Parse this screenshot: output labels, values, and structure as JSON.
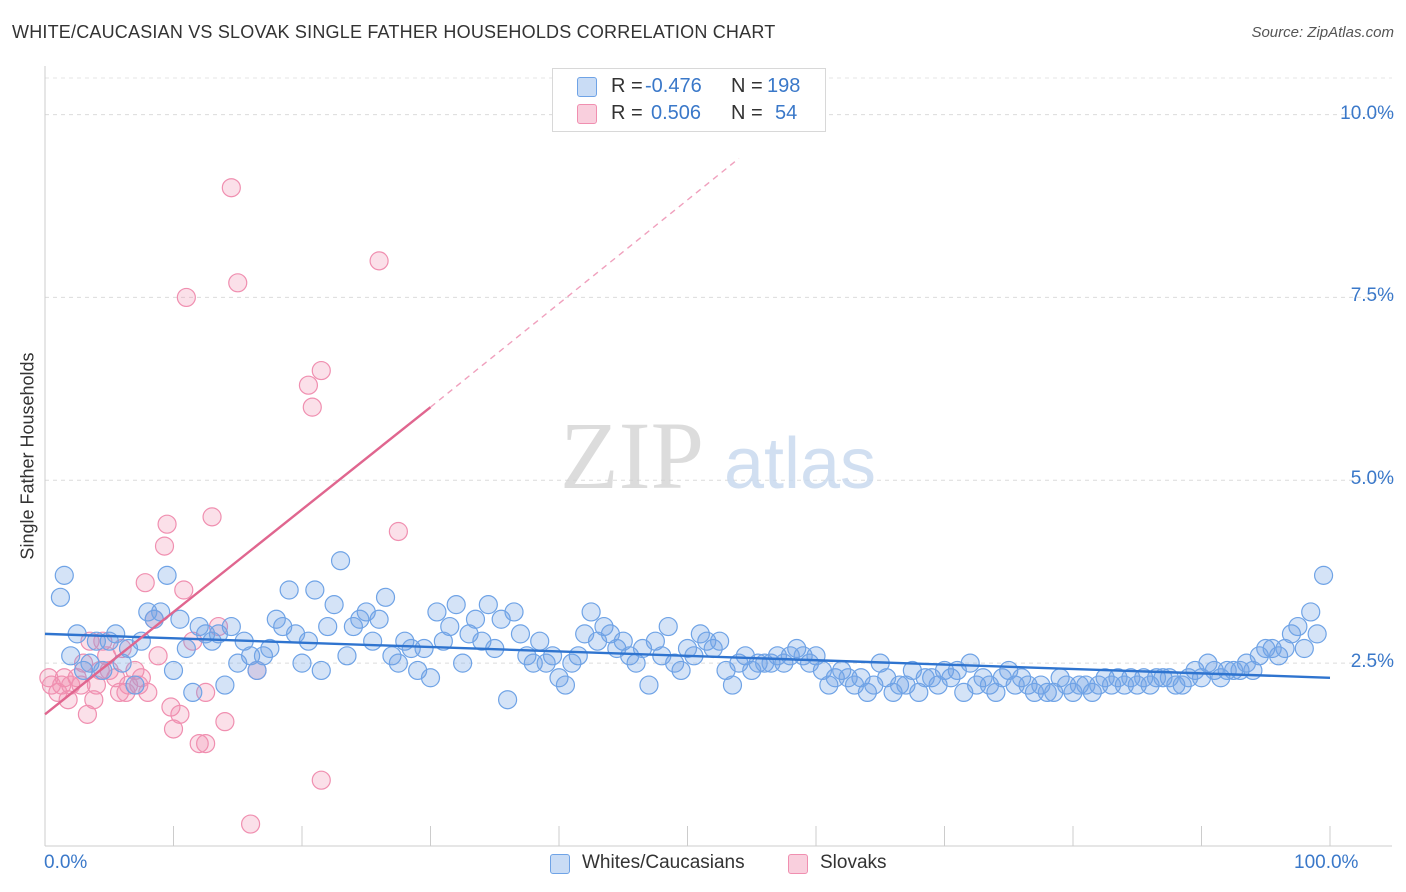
{
  "title": "WHITE/CAUCASIAN VS SLOVAK SINGLE FATHER HOUSEHOLDS CORRELATION CHART",
  "source": "Source: ZipAtlas.com",
  "watermark": {
    "zip": "ZIP",
    "atlas": "atlas"
  },
  "legend_top": [
    {
      "r_label": "R =",
      "r_value": "-0.476",
      "n_label": "N =",
      "n_value": "198",
      "color": "#6fa3e6"
    },
    {
      "r_label": "R =",
      "r_value": "0.506",
      "n_label": "N =",
      "n_value": "54",
      "color": "#f08fb0"
    }
  ],
  "legend_bottom": [
    {
      "label": "Whites/Caucasians",
      "color": "#6fa3e6"
    },
    {
      "label": "Slovaks",
      "color": "#f08fb0"
    }
  ],
  "chart_data": {
    "type": "scatter",
    "title": "WHITE/CAUCASIAN VS SLOVAK SINGLE FATHER HOUSEHOLDS CORRELATION CHART",
    "xlabel": "",
    "ylabel": "Single Father Households",
    "xlim": [
      0,
      100
    ],
    "ylim": [
      0,
      10.5
    ],
    "x_tick_labels": [
      "0.0%",
      "100.0%"
    ],
    "y_ticks": [
      2.5,
      5.0,
      7.5,
      10.0
    ],
    "y_tick_labels": [
      "2.5%",
      "5.0%",
      "7.5%",
      "10.0%"
    ],
    "grid": true,
    "series": [
      {
        "name": "Whites/Caucasians",
        "color": "#6fa3e6",
        "trend": {
          "x": [
            0,
            100
          ],
          "y": [
            2.9,
            2.3
          ],
          "dashed_extension": false
        },
        "points": [
          [
            1.2,
            3.4
          ],
          [
            1.5,
            3.7
          ],
          [
            2,
            2.6
          ],
          [
            2.5,
            2.9
          ],
          [
            3,
            2.4
          ],
          [
            3.5,
            2.5
          ],
          [
            4,
            2.8
          ],
          [
            4.5,
            2.4
          ],
          [
            5,
            2.8
          ],
          [
            5.5,
            2.9
          ],
          [
            6,
            2.5
          ],
          [
            6.5,
            2.7
          ],
          [
            7,
            2.2
          ],
          [
            7.5,
            2.8
          ],
          [
            8,
            3.2
          ],
          [
            8.5,
            3.1
          ],
          [
            9,
            3.2
          ],
          [
            9.5,
            3.7
          ],
          [
            10,
            2.4
          ],
          [
            10.5,
            3.1
          ],
          [
            11,
            2.7
          ],
          [
            11.5,
            2.1
          ],
          [
            12,
            3.0
          ],
          [
            12.5,
            2.9
          ],
          [
            13,
            2.8
          ],
          [
            13.5,
            2.9
          ],
          [
            14,
            2.2
          ],
          [
            14.5,
            3.0
          ],
          [
            15,
            2.5
          ],
          [
            15.5,
            2.8
          ],
          [
            16,
            2.6
          ],
          [
            16.5,
            2.4
          ],
          [
            17,
            2.6
          ],
          [
            17.5,
            2.7
          ],
          [
            18,
            3.1
          ],
          [
            18.5,
            3.0
          ],
          [
            19,
            3.5
          ],
          [
            19.5,
            2.9
          ],
          [
            20,
            2.5
          ],
          [
            20.5,
            2.8
          ],
          [
            21,
            3.5
          ],
          [
            21.5,
            2.4
          ],
          [
            22,
            3.0
          ],
          [
            22.5,
            3.3
          ],
          [
            23,
            3.9
          ],
          [
            23.5,
            2.6
          ],
          [
            24,
            3.0
          ],
          [
            24.5,
            3.1
          ],
          [
            25,
            3.2
          ],
          [
            25.5,
            2.8
          ],
          [
            26,
            3.1
          ],
          [
            26.5,
            3.4
          ],
          [
            27,
            2.6
          ],
          [
            27.5,
            2.5
          ],
          [
            28,
            2.8
          ],
          [
            28.5,
            2.7
          ],
          [
            29,
            2.4
          ],
          [
            29.5,
            2.7
          ],
          [
            30,
            2.3
          ],
          [
            30.5,
            3.2
          ],
          [
            31,
            2.8
          ],
          [
            31.5,
            3.0
          ],
          [
            32,
            3.3
          ],
          [
            32.5,
            2.5
          ],
          [
            33,
            2.9
          ],
          [
            33.5,
            3.1
          ],
          [
            34,
            2.8
          ],
          [
            34.5,
            3.3
          ],
          [
            35,
            2.7
          ],
          [
            35.5,
            3.1
          ],
          [
            36,
            2.0
          ],
          [
            36.5,
            3.2
          ],
          [
            37,
            2.9
          ],
          [
            37.5,
            2.6
          ],
          [
            38,
            2.5
          ],
          [
            38.5,
            2.8
          ],
          [
            39,
            2.5
          ],
          [
            39.5,
            2.6
          ],
          [
            40,
            2.3
          ],
          [
            40.5,
            2.2
          ],
          [
            41,
            2.5
          ],
          [
            41.5,
            2.6
          ],
          [
            42,
            2.9
          ],
          [
            42.5,
            3.2
          ],
          [
            43,
            2.8
          ],
          [
            43.5,
            3.0
          ],
          [
            44,
            2.9
          ],
          [
            44.5,
            2.7
          ],
          [
            45,
            2.8
          ],
          [
            45.5,
            2.6
          ],
          [
            46,
            2.5
          ],
          [
            46.5,
            2.7
          ],
          [
            47,
            2.2
          ],
          [
            47.5,
            2.8
          ],
          [
            48,
            2.6
          ],
          [
            48.5,
            3.0
          ],
          [
            49,
            2.5
          ],
          [
            49.5,
            2.4
          ],
          [
            50,
            2.7
          ],
          [
            50.5,
            2.6
          ],
          [
            51,
            2.9
          ],
          [
            51.5,
            2.8
          ],
          [
            52,
            2.7
          ],
          [
            52.5,
            2.8
          ],
          [
            53,
            2.4
          ],
          [
            53.5,
            2.2
          ],
          [
            54,
            2.5
          ],
          [
            54.5,
            2.6
          ],
          [
            55,
            2.4
          ],
          [
            55.5,
            2.5
          ],
          [
            56,
            2.5
          ],
          [
            56.5,
            2.5
          ],
          [
            57,
            2.6
          ],
          [
            57.5,
            2.5
          ],
          [
            58,
            2.6
          ],
          [
            58.5,
            2.7
          ],
          [
            59,
            2.6
          ],
          [
            59.5,
            2.5
          ],
          [
            60,
            2.6
          ],
          [
            60.5,
            2.4
          ],
          [
            61,
            2.2
          ],
          [
            61.5,
            2.3
          ],
          [
            62,
            2.4
          ],
          [
            62.5,
            2.3
          ],
          [
            63,
            2.2
          ],
          [
            63.5,
            2.3
          ],
          [
            64,
            2.1
          ],
          [
            64.5,
            2.2
          ],
          [
            65,
            2.5
          ],
          [
            65.5,
            2.3
          ],
          [
            66,
            2.1
          ],
          [
            66.5,
            2.2
          ],
          [
            67,
            2.2
          ],
          [
            67.5,
            2.4
          ],
          [
            68,
            2.1
          ],
          [
            68.5,
            2.3
          ],
          [
            69,
            2.3
          ],
          [
            69.5,
            2.2
          ],
          [
            70,
            2.4
          ],
          [
            70.5,
            2.3
          ],
          [
            71,
            2.4
          ],
          [
            71.5,
            2.1
          ],
          [
            72,
            2.5
          ],
          [
            72.5,
            2.2
          ],
          [
            73,
            2.3
          ],
          [
            73.5,
            2.2
          ],
          [
            74,
            2.1
          ],
          [
            74.5,
            2.3
          ],
          [
            75,
            2.4
          ],
          [
            75.5,
            2.2
          ],
          [
            76,
            2.3
          ],
          [
            76.5,
            2.2
          ],
          [
            77,
            2.1
          ],
          [
            77.5,
            2.2
          ],
          [
            78,
            2.1
          ],
          [
            78.5,
            2.1
          ],
          [
            79,
            2.3
          ],
          [
            79.5,
            2.2
          ],
          [
            80,
            2.1
          ],
          [
            80.5,
            2.2
          ],
          [
            81,
            2.2
          ],
          [
            81.5,
            2.1
          ],
          [
            82,
            2.2
          ],
          [
            82.5,
            2.3
          ],
          [
            83,
            2.2
          ],
          [
            83.5,
            2.3
          ],
          [
            84,
            2.2
          ],
          [
            84.5,
            2.3
          ],
          [
            85,
            2.2
          ],
          [
            85.5,
            2.3
          ],
          [
            86,
            2.2
          ],
          [
            86.5,
            2.3
          ],
          [
            87,
            2.3
          ],
          [
            87.5,
            2.3
          ],
          [
            88,
            2.2
          ],
          [
            88.5,
            2.2
          ],
          [
            89,
            2.3
          ],
          [
            89.5,
            2.4
          ],
          [
            90,
            2.3
          ],
          [
            90.5,
            2.5
          ],
          [
            91,
            2.4
          ],
          [
            91.5,
            2.3
          ],
          [
            92,
            2.4
          ],
          [
            92.5,
            2.4
          ],
          [
            93,
            2.4
          ],
          [
            93.5,
            2.5
          ],
          [
            94,
            2.4
          ],
          [
            94.5,
            2.6
          ],
          [
            95,
            2.7
          ],
          [
            95.5,
            2.7
          ],
          [
            96,
            2.6
          ],
          [
            96.5,
            2.7
          ],
          [
            97,
            2.9
          ],
          [
            97.5,
            3.0
          ],
          [
            98,
            2.7
          ],
          [
            98.5,
            3.2
          ],
          [
            99,
            2.9
          ],
          [
            99.5,
            3.7
          ]
        ]
      },
      {
        "name": "Slovaks",
        "color": "#f08fb0",
        "trend": {
          "x": [
            0,
            30
          ],
          "y": [
            1.8,
            6.0
          ],
          "dashed_extension": true,
          "dashed_to": [
            54,
            9.4
          ]
        },
        "points": [
          [
            0.3,
            2.3
          ],
          [
            0.5,
            2.2
          ],
          [
            1,
            2.1
          ],
          [
            1.3,
            2.2
          ],
          [
            1.5,
            2.3
          ],
          [
            1.8,
            2.0
          ],
          [
            2,
            2.2
          ],
          [
            2.5,
            2.3
          ],
          [
            2.8,
            2.2
          ],
          [
            3,
            2.5
          ],
          [
            3.3,
            1.8
          ],
          [
            3.5,
            2.8
          ],
          [
            3.8,
            2.0
          ],
          [
            4,
            2.2
          ],
          [
            4.3,
            2.4
          ],
          [
            4.5,
            2.8
          ],
          [
            4.8,
            2.6
          ],
          [
            5,
            2.4
          ],
          [
            5.5,
            2.3
          ],
          [
            5.8,
            2.1
          ],
          [
            6,
            2.7
          ],
          [
            6.3,
            2.1
          ],
          [
            6.5,
            2.2
          ],
          [
            7,
            2.4
          ],
          [
            7.3,
            2.2
          ],
          [
            7.5,
            2.3
          ],
          [
            7.8,
            3.6
          ],
          [
            8,
            2.1
          ],
          [
            8.5,
            3.1
          ],
          [
            8.8,
            2.6
          ],
          [
            9.3,
            4.1
          ],
          [
            9.5,
            4.4
          ],
          [
            9.8,
            1.9
          ],
          [
            10,
            1.6
          ],
          [
            10.5,
            1.8
          ],
          [
            10.8,
            3.5
          ],
          [
            11,
            7.5
          ],
          [
            11.5,
            2.8
          ],
          [
            12,
            1.4
          ],
          [
            12.5,
            2.1
          ],
          [
            12.5,
            1.4
          ],
          [
            13,
            4.5
          ],
          [
            13.5,
            3.0
          ],
          [
            14,
            1.7
          ],
          [
            14.5,
            9.0
          ],
          [
            15,
            7.7
          ],
          [
            16,
            0.3
          ],
          [
            16.5,
            2.4
          ],
          [
            20.5,
            6.3
          ],
          [
            20.8,
            6.0
          ],
          [
            21.5,
            6.5
          ],
          [
            21.5,
            0.9
          ],
          [
            26,
            8.0
          ],
          [
            27.5,
            4.3
          ]
        ]
      }
    ]
  }
}
